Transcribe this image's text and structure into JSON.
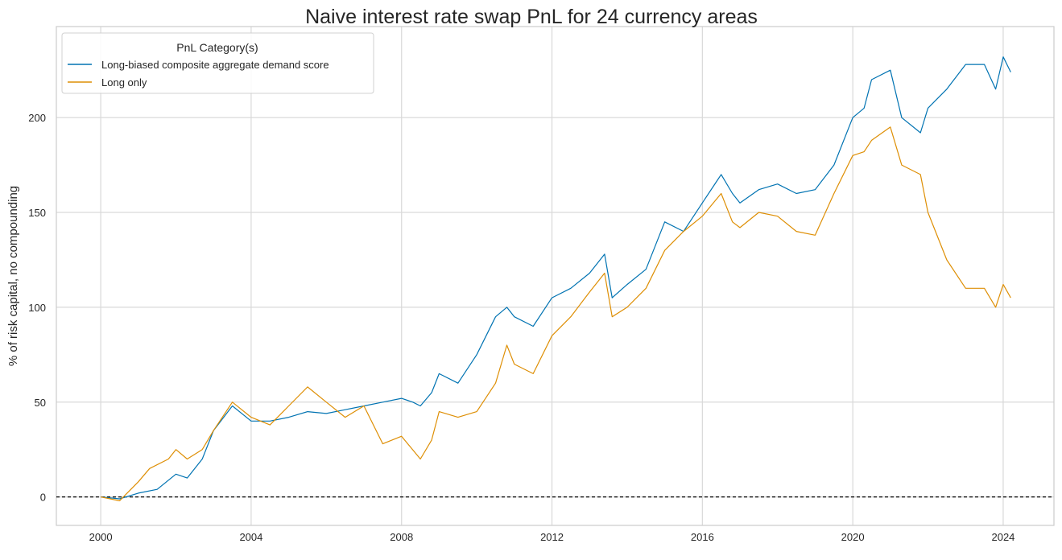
{
  "chart_data": {
    "type": "line",
    "title": "Naive interest rate swap PnL for 24 currency areas",
    "xlabel": "",
    "ylabel": "% of risk capital, no compounding",
    "xlim": [
      1998.82,
      2025.35
    ],
    "ylim": [
      -15,
      248
    ],
    "xticks": [
      2000,
      2004,
      2008,
      2012,
      2016,
      2020,
      2024
    ],
    "xtick_labels": [
      "2000",
      "2004",
      "2008",
      "2012",
      "2016",
      "2020",
      "2024"
    ],
    "yticks": [
      0,
      50,
      100,
      150,
      200
    ],
    "ytick_labels": [
      "0",
      "50",
      "100",
      "150",
      "200"
    ],
    "grid": true,
    "hline": {
      "y": 0,
      "style": "dashed",
      "color": "#000000"
    },
    "legend": {
      "title": "PnL Category(s)",
      "placement": "top-left"
    },
    "series": [
      {
        "name": "Long-biased composite aggregate demand score",
        "color": "#0173b2",
        "x": [
          2000.0,
          2000.5,
          2001.0,
          2001.5,
          2002.0,
          2002.3,
          2002.7,
          2003.0,
          2003.5,
          2004.0,
          2004.5,
          2005.0,
          2005.5,
          2006.0,
          2006.5,
          2007.0,
          2007.5,
          2008.0,
          2008.3,
          2008.5,
          2008.8,
          2009.0,
          2009.5,
          2010.0,
          2010.5,
          2010.8,
          2011.0,
          2011.5,
          2012.0,
          2012.5,
          2013.0,
          2013.4,
          2013.6,
          2014.0,
          2014.5,
          2015.0,
          2015.5,
          2016.0,
          2016.5,
          2016.8,
          2017.0,
          2017.5,
          2018.0,
          2018.5,
          2019.0,
          2019.5,
          2020.0,
          2020.3,
          2020.5,
          2021.0,
          2021.3,
          2021.8,
          2022.0,
          2022.5,
          2023.0,
          2023.5,
          2023.8,
          2024.0,
          2024.2
        ],
        "y": [
          0,
          -1,
          2,
          4,
          12,
          10,
          20,
          35,
          48,
          40,
          40,
          42,
          45,
          44,
          46,
          48,
          50,
          52,
          50,
          48,
          55,
          65,
          60,
          75,
          95,
          100,
          95,
          90,
          105,
          110,
          118,
          128,
          105,
          112,
          120,
          145,
          140,
          155,
          170,
          160,
          155,
          162,
          165,
          160,
          162,
          175,
          200,
          205,
          220,
          225,
          200,
          192,
          205,
          215,
          228,
          228,
          215,
          232,
          224
        ]
      },
      {
        "name": "Long only",
        "color": "#de8f05",
        "x": [
          2000.0,
          2000.5,
          2001.0,
          2001.3,
          2001.8,
          2002.0,
          2002.3,
          2002.7,
          2003.0,
          2003.5,
          2004.0,
          2004.5,
          2005.0,
          2005.5,
          2006.0,
          2006.5,
          2007.0,
          2007.5,
          2008.0,
          2008.5,
          2008.8,
          2009.0,
          2009.5,
          2010.0,
          2010.5,
          2010.8,
          2011.0,
          2011.5,
          2012.0,
          2012.5,
          2013.0,
          2013.4,
          2013.6,
          2014.0,
          2014.5,
          2015.0,
          2015.5,
          2016.0,
          2016.5,
          2016.8,
          2017.0,
          2017.5,
          2018.0,
          2018.5,
          2019.0,
          2019.5,
          2020.0,
          2020.3,
          2020.5,
          2021.0,
          2021.3,
          2021.8,
          2022.0,
          2022.5,
          2023.0,
          2023.5,
          2023.8,
          2024.0,
          2024.2
        ],
        "y": [
          0,
          -2,
          8,
          15,
          20,
          25,
          20,
          25,
          35,
          50,
          42,
          38,
          48,
          58,
          50,
          42,
          48,
          28,
          32,
          20,
          30,
          45,
          42,
          45,
          60,
          80,
          70,
          65,
          85,
          95,
          108,
          118,
          95,
          100,
          110,
          130,
          140,
          148,
          160,
          145,
          142,
          150,
          148,
          140,
          138,
          160,
          180,
          182,
          188,
          195,
          175,
          170,
          150,
          125,
          110,
          110,
          100,
          112,
          105
        ]
      }
    ]
  }
}
